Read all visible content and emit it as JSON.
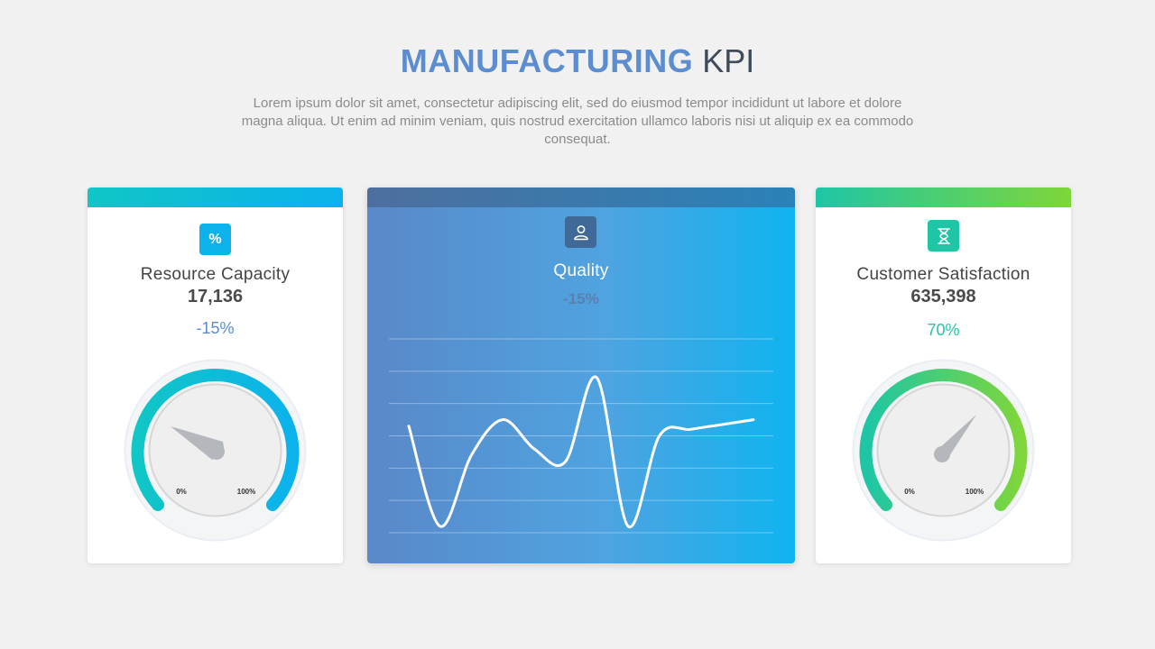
{
  "header": {
    "title_bold": "MANUFACTURING",
    "title_light": "KPI",
    "subtitle": "Lorem ipsum dolor sit amet, consectetur adipiscing elit, sed do eiusmod tempor incididunt ut labore et dolore magna aliqua. Ut enim ad minim veniam, quis nostrud exercitation ullamco laboris nisi ut aliquip ex ea commodo consequat."
  },
  "cards": {
    "resource": {
      "icon": "percent-icon",
      "icon_glyph": "%",
      "label": "Resource Capacity",
      "value": "17,136",
      "change": "-15%",
      "gauge_min_label": "0%",
      "gauge_max_label": "100%",
      "accent": "#0bb2ec"
    },
    "quality": {
      "icon": "user-icon",
      "label": "Quality",
      "change": "-15%"
    },
    "satisfaction": {
      "icon": "hourglass-icon",
      "label": "Customer Satisfaction",
      "value": "635,398",
      "change": "70%",
      "gauge_min_label": "0%",
      "gauge_max_label": "100%",
      "accent": "#1ec6a6"
    }
  },
  "chart_data": {
    "type": "line",
    "title": "",
    "xlabel": "",
    "ylabel": "",
    "grid": true,
    "ylim": [
      0,
      6
    ],
    "x": [
      0,
      1,
      2,
      3,
      4,
      5,
      6,
      7,
      8,
      9,
      10,
      11
    ],
    "series": [
      {
        "values": [
          3.3,
          0.2,
          2.4,
          3.5,
          2.6,
          2.2,
          4.8,
          0.2,
          3.0,
          3.2,
          3.35,
          3.5
        ]
      }
    ]
  }
}
